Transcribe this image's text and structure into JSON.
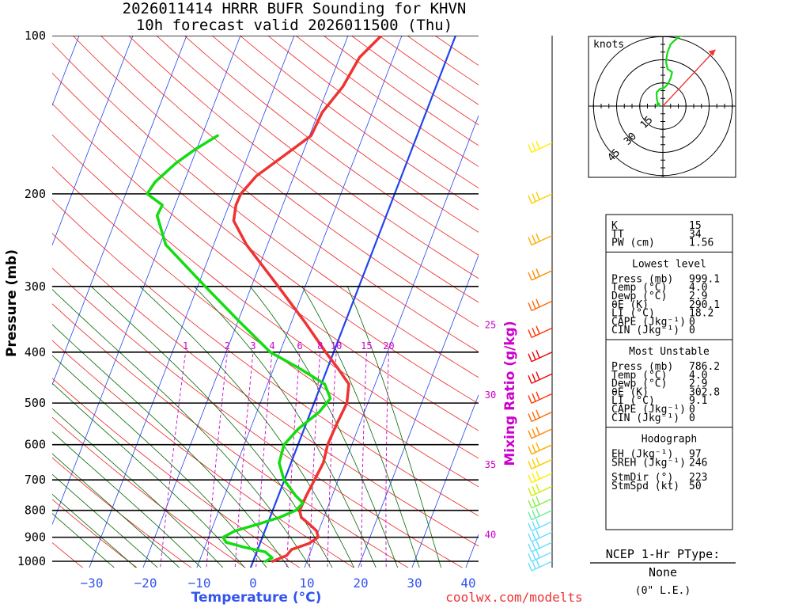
{
  "title_line1": "2026011414 HRRR BUFR Sounding for KHVN",
  "title_line2": "10h forecast valid 2026011500 (Thu)",
  "credit": "coolwx.com/modelts",
  "chart_data": {
    "type": "skew-t",
    "xlabel": "Temperature (°C)",
    "ylabel": "Pressure (mb)",
    "y2label": "Mixing Ratio (g/kg)",
    "pressure_ticks": [
      100,
      200,
      300,
      400,
      500,
      600,
      700,
      800,
      900,
      1000
    ],
    "pressure_labels": [
      "100",
      "200",
      "300",
      "400",
      "500",
      "600",
      "700",
      "800",
      "900",
      "1000"
    ],
    "temp_ticks": [
      -30,
      -20,
      -10,
      0,
      10,
      20,
      30,
      40
    ],
    "temp_tick_labels": [
      "−30",
      "−20",
      "−10",
      "0",
      "10",
      "20",
      "30",
      "40"
    ],
    "mixing_ratio_labels": [
      "1",
      "2",
      "3",
      "4",
      "6",
      "8",
      "10",
      "15",
      "20"
    ],
    "mixing_ratio_values": [
      1,
      2,
      3,
      4,
      6,
      8,
      10,
      15,
      20
    ],
    "side_temp_labels": [
      "25",
      "30",
      "35",
      "40"
    ],
    "side_temp_values": [
      25,
      30,
      35,
      40
    ],
    "temperature_profile": {
      "name": "Temperature",
      "color": "#ee3333",
      "points": [
        {
          "p": 1000,
          "t": 3.6
        },
        {
          "p": 975,
          "t": 5.8
        },
        {
          "p": 950,
          "t": 6.3
        },
        {
          "p": 925,
          "t": 9.1
        },
        {
          "p": 900,
          "t": 10.4
        },
        {
          "p": 875,
          "t": 9.6
        },
        {
          "p": 850,
          "t": 7.8
        },
        {
          "p": 825,
          "t": 5.8
        },
        {
          "p": 800,
          "t": 5.0
        },
        {
          "p": 750,
          "t": 5.2
        },
        {
          "p": 700,
          "t": 5.6
        },
        {
          "p": 650,
          "t": 6.0
        },
        {
          "p": 600,
          "t": 5.5
        },
        {
          "p": 550,
          "t": 5.7
        },
        {
          "p": 500,
          "t": 6.1
        },
        {
          "p": 460,
          "t": 5.1
        },
        {
          "p": 430,
          "t": 2.0
        },
        {
          "p": 400,
          "t": -1.5
        },
        {
          "p": 350,
          "t": -7.6
        },
        {
          "p": 300,
          "t": -15.0
        },
        {
          "p": 250,
          "t": -23.9
        },
        {
          "p": 225,
          "t": -28.0
        },
        {
          "p": 210,
          "t": -28.7
        },
        {
          "p": 200,
          "t": -28.6
        },
        {
          "p": 185,
          "t": -27.0
        },
        {
          "p": 170,
          "t": -23.5
        },
        {
          "p": 155,
          "t": -19.7
        },
        {
          "p": 140,
          "t": -19.3
        },
        {
          "p": 125,
          "t": -17.3
        },
        {
          "p": 110,
          "t": -16.3
        },
        {
          "p": 100,
          "t": -13.8
        }
      ]
    },
    "dewpoint_profile": {
      "name": "Dewpoint",
      "color": "#11dd11",
      "points": [
        {
          "p": 1000,
          "t": 2.3
        },
        {
          "p": 985,
          "t": 3.3
        },
        {
          "p": 960,
          "t": 1.6
        },
        {
          "p": 940,
          "t": -2.7
        },
        {
          "p": 920,
          "t": -6.4
        },
        {
          "p": 900,
          "t": -7.3
        },
        {
          "p": 875,
          "t": -5.5
        },
        {
          "p": 850,
          "t": -1.7
        },
        {
          "p": 825,
          "t": 1.8
        },
        {
          "p": 800,
          "t": 4.3
        },
        {
          "p": 775,
          "t": 5.1
        },
        {
          "p": 750,
          "t": 3.2
        },
        {
          "p": 700,
          "t": -0.1
        },
        {
          "p": 650,
          "t": -2.2
        },
        {
          "p": 600,
          "t": -2.6
        },
        {
          "p": 560,
          "t": -1.1
        },
        {
          "p": 520,
          "t": 1.6
        },
        {
          "p": 490,
          "t": 2.7
        },
        {
          "p": 460,
          "t": 0.6
        },
        {
          "p": 430,
          "t": -5.1
        },
        {
          "p": 400,
          "t": -11.8
        },
        {
          "p": 350,
          "t": -19.7
        },
        {
          "p": 300,
          "t": -28.6
        },
        {
          "p": 250,
          "t": -38.9
        },
        {
          "p": 220,
          "t": -42.6
        },
        {
          "p": 210,
          "t": -42.4
        },
        {
          "p": 200,
          "t": -46.0
        },
        {
          "p": 190,
          "t": -45.4
        },
        {
          "p": 175,
          "t": -42.9
        },
        {
          "p": 165,
          "t": -40.4
        },
        {
          "p": 155,
          "t": -37.1
        }
      ]
    }
  },
  "hodograph": {
    "unit_label": "knots",
    "ring_labels": [
      "15",
      "30",
      "45"
    ],
    "ring_values": [
      15,
      30,
      45
    ],
    "storm_motion": {
      "dir": 223,
      "spd": 50
    },
    "points": [
      {
        "u": -3,
        "v": 1
      },
      {
        "u": -4,
        "v": 5
      },
      {
        "u": -4,
        "v": 9
      },
      {
        "u": -2,
        "v": 11
      },
      {
        "u": 1,
        "v": 12
      },
      {
        "u": 3,
        "v": 14
      },
      {
        "u": 5,
        "v": 18
      },
      {
        "u": 6,
        "v": 22
      },
      {
        "u": 3,
        "v": 24
      },
      {
        "u": 2,
        "v": 29
      },
      {
        "u": 3,
        "v": 35
      },
      {
        "u": 5,
        "v": 40
      },
      {
        "u": 7,
        "v": 42
      },
      {
        "u": 12,
        "v": 46
      }
    ],
    "colors": {
      "ring": "#000000",
      "trace": "#11dd11",
      "arrow": "#ee3333"
    }
  },
  "indices": {
    "top": [
      {
        "label": "K",
        "value": "15"
      },
      {
        "label": "TT",
        "value": "34"
      },
      {
        "label": "PW (cm)",
        "value": "1.56"
      }
    ],
    "lowest_header": "Lowest level",
    "lowest": [
      {
        "label": "Press (mb)",
        "value": "999.1"
      },
      {
        "label": "Temp (°C)",
        "value": "4.0"
      },
      {
        "label": "Dewp (°C)",
        "value": "2.9"
      },
      {
        "label": "θE (K)",
        "value": "290.1"
      },
      {
        "label": "LI (°C)",
        "value": "18.2"
      },
      {
        "label": "CAPE (Jkg⁻¹)",
        "value": "0"
      },
      {
        "label": "CIN (Jkg⁻¹)",
        "value": "0"
      }
    ],
    "unstable_header": "Most Unstable",
    "unstable": [
      {
        "label": "Press (mb)",
        "value": "786.2"
      },
      {
        "label": "Temp (°C)",
        "value": "4.0"
      },
      {
        "label": "Dewp (°C)",
        "value": "2.9"
      },
      {
        "label": "θE (K)",
        "value": "302.8"
      },
      {
        "label": "LI (°C)",
        "value": "9.1"
      },
      {
        "label": "CAPE (Jkg⁻¹)",
        "value": "0"
      },
      {
        "label": "CIN (Jkg⁻¹)",
        "value": "0"
      }
    ],
    "hodo_header": "Hodograph",
    "hodo": [
      {
        "label": "EH (Jkg⁻¹)",
        "value": "97"
      },
      {
        "label": "SREH (Jkg⁻¹)",
        "value": "246"
      },
      {
        "label": "StmDir (°)",
        "value": "223"
      },
      {
        "label": "StmSpd (kt)",
        "value": "50"
      }
    ]
  },
  "ptype": {
    "title": "NCEP 1-Hr PType:",
    "value": "None",
    "note": "(0\" L.E.)"
  },
  "colors": {
    "isotherm": "#2244ee",
    "dry_adiabat": "#ee2222",
    "moist_adiabat": "#006600",
    "mixing_ratio": "#cc00cc",
    "freezing_line": "#2244ee",
    "axis_text_blue": "#3355ee"
  }
}
